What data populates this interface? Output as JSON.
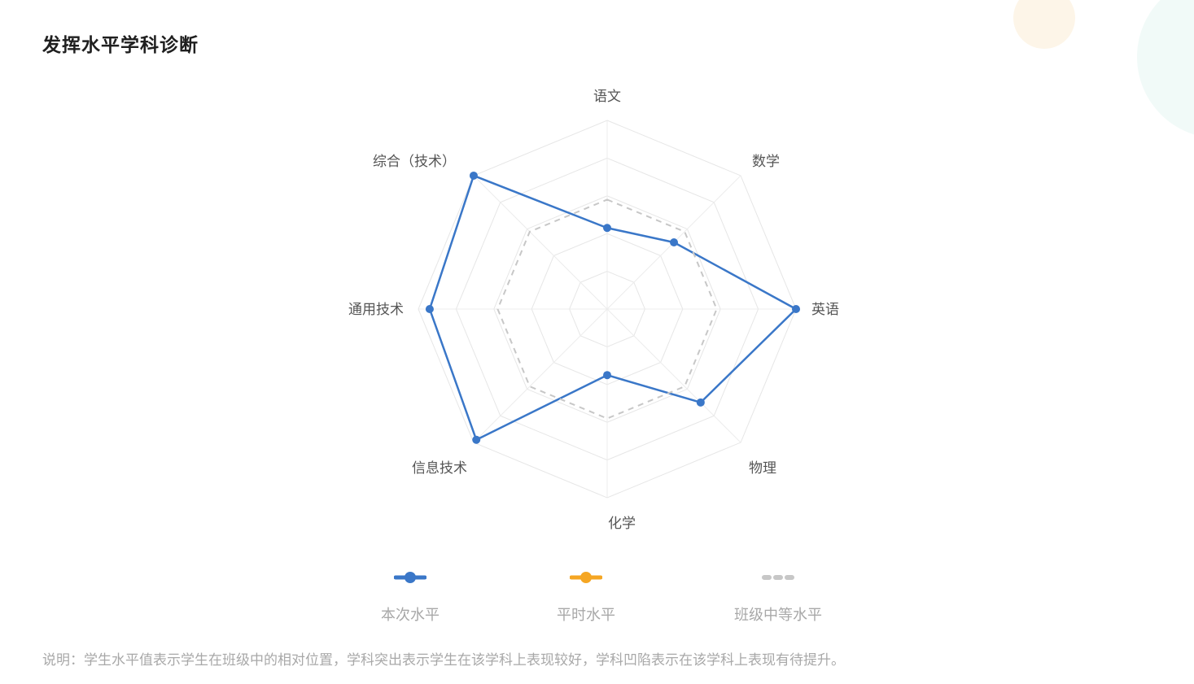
{
  "page": {
    "title": "发挥水平学科诊断",
    "note": "说明：学生水平值表示学生在班级中的相对位置，学科突出表示学生在该学科上表现较好，学科凹陷表示在该学科上表现有待提升。"
  },
  "chart_data": {
    "type": "radar",
    "title": "发挥水平学科诊断",
    "axes": [
      "语文",
      "数学",
      "英语",
      "物理",
      "化学",
      "信息技术",
      "通用技术",
      "综合（技术）"
    ],
    "range": [
      0,
      100
    ],
    "rings": 5,
    "series": [
      {
        "name": "本次水平",
        "color": "#3a77c8",
        "style": "solid",
        "values": [
          43,
          50,
          100,
          70,
          35,
          98,
          94,
          100
        ]
      },
      {
        "name": "平时水平",
        "color": "#f5a623",
        "style": "solid",
        "values": []
      },
      {
        "name": "班级中等水平",
        "color": "#c7c7c7",
        "style": "dashed",
        "values": [
          58,
          58,
          58,
          58,
          58,
          58,
          58,
          58
        ]
      }
    ],
    "legend": {
      "position": "bottom"
    },
    "grid": true
  }
}
